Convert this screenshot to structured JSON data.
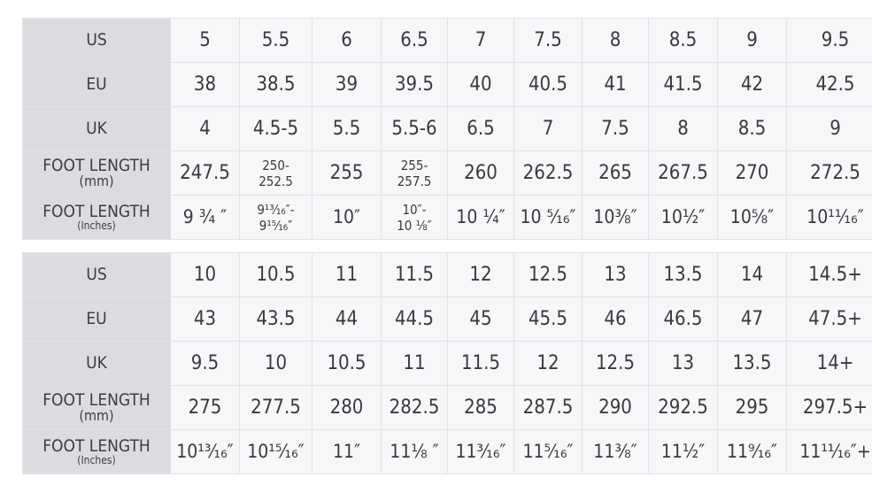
{
  "tables": [
    {
      "rows": [
        {
          "label": "US",
          "sub": "",
          "values": [
            "5",
            "5.5",
            "6",
            "6.5",
            "7",
            "7.5",
            "8",
            "8.5",
            "9",
            "9.5"
          ]
        },
        {
          "label": "EU",
          "sub": "",
          "values": [
            "38",
            "38.5",
            "39",
            "39.5",
            "40",
            "40.5",
            "41",
            "41.5",
            "42",
            "42.5"
          ]
        },
        {
          "label": "UK",
          "sub": "",
          "values": [
            "4",
            "4.5-5",
            "5.5",
            "5.5-6",
            "6.5",
            "7",
            "7.5",
            "8",
            "8.5",
            "9"
          ]
        },
        {
          "label": "FOOT LENGTH",
          "sub": "(mm)",
          "values": [
            "247.5",
            "250-\n252.5",
            "255",
            "255-\n257.5",
            "260",
            "262.5",
            "265",
            "267.5",
            "270",
            "272.5"
          ]
        },
        {
          "label": "FOOT LENGTH",
          "sub": "(Inches)",
          "values": [
            "9 ¾ ″",
            "9¹³⁄₁₆″-\n9¹⁵⁄₁₆″",
            "10″",
            "10″-\n10 ⅛″",
            "10 ¼″",
            "10 ⁵⁄₁₆″",
            "10⅜″",
            "10½″",
            "10⅝″",
            "10¹¹⁄₁₆″"
          ]
        }
      ]
    },
    {
      "rows": [
        {
          "label": "US",
          "sub": "",
          "values": [
            "10",
            "10.5",
            "11",
            "11.5",
            "12",
            "12.5",
            "13",
            "13.5",
            "14",
            "14.5+"
          ]
        },
        {
          "label": "EU",
          "sub": "",
          "values": [
            "43",
            "43.5",
            "44",
            "44.5",
            "45",
            "45.5",
            "46",
            "46.5",
            "47",
            "47.5+"
          ]
        },
        {
          "label": "UK",
          "sub": "",
          "values": [
            "9.5",
            "10",
            "10.5",
            "11",
            "11.5",
            "12",
            "12.5",
            "13",
            "13.5",
            "14+"
          ]
        },
        {
          "label": "FOOT LENGTH",
          "sub": "(mm)",
          "values": [
            "275",
            "277.5",
            "280",
            "282.5",
            "285",
            "287.5",
            "290",
            "292.5",
            "295",
            "297.5+"
          ]
        },
        {
          "label": "FOOT LENGTH",
          "sub": "(Inches)",
          "values": [
            "10¹³⁄₁₆″",
            "10¹⁵⁄₁₆″",
            "11″",
            "11⅛ ″",
            "11³⁄₁₆″",
            "11⁵⁄₁₆″",
            "11⅜″",
            "11½″",
            "11⁹⁄₁₆″",
            "11¹¹⁄₁₆″+"
          ]
        }
      ]
    }
  ]
}
